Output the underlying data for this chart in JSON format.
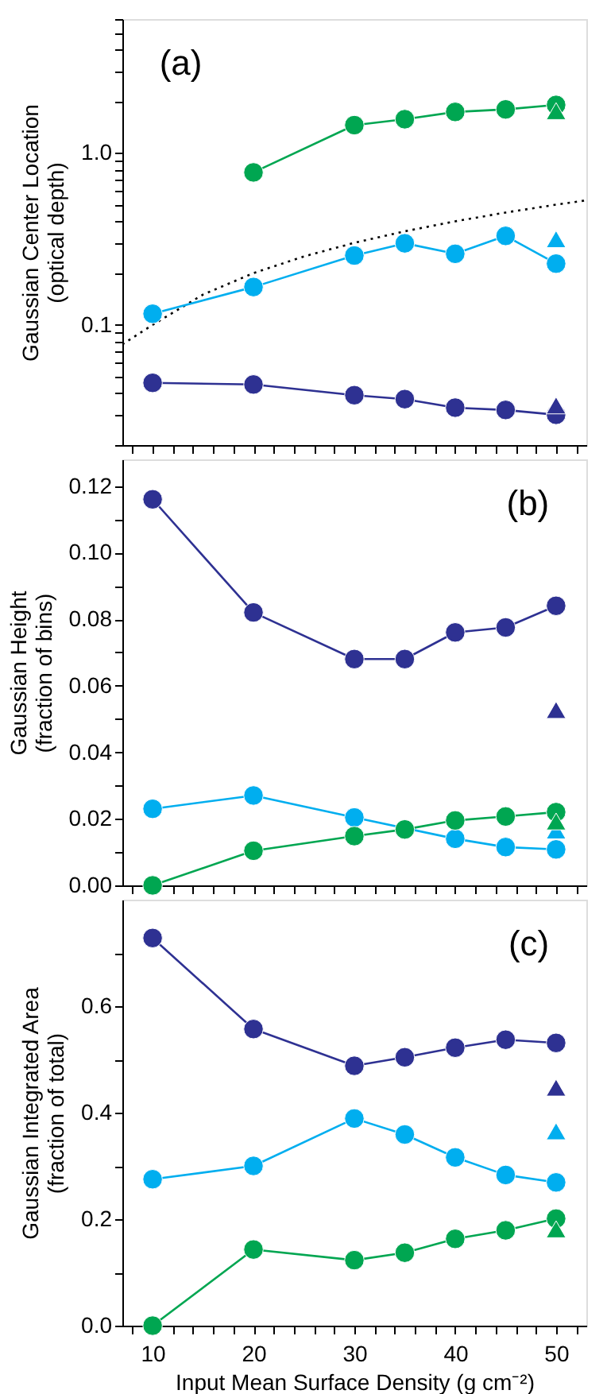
{
  "chart_data": [
    {
      "type": "line",
      "ylabel": "Gaussian Center Location\n(optical depth)",
      "annotations": [
        "(a)"
      ],
      "log": true,
      "xlim": [
        7,
        53
      ],
      "ylim": [
        0.02,
        6
      ],
      "tick_labels": "y",
      "xticks": [
        {
          "value": 8,
          "label": null
        },
        {
          "value": 10,
          "label": null
        },
        {
          "value": 12,
          "label": null
        },
        {
          "value": 14,
          "label": null
        },
        {
          "value": 16,
          "label": null
        },
        {
          "value": 18,
          "label": null
        },
        {
          "value": 20,
          "label": null
        },
        {
          "value": 22,
          "label": null
        },
        {
          "value": 24,
          "label": null
        },
        {
          "value": 26,
          "label": null
        },
        {
          "value": 28,
          "label": null
        },
        {
          "value": 30,
          "label": null
        },
        {
          "value": 32,
          "label": null
        },
        {
          "value": 34,
          "label": null
        },
        {
          "value": 36,
          "label": null
        },
        {
          "value": 38,
          "label": null
        },
        {
          "value": 40,
          "label": null
        },
        {
          "value": 42,
          "label": null
        },
        {
          "value": 44,
          "label": null
        },
        {
          "value": 46,
          "label": null
        },
        {
          "value": 48,
          "label": null
        },
        {
          "value": 50,
          "label": null
        },
        {
          "value": 52,
          "label": null
        }
      ],
      "yticks": [
        {
          "value": 0.02,
          "label": null
        },
        {
          "value": 0.03,
          "label": null
        },
        {
          "value": 0.04,
          "label": null
        },
        {
          "value": 0.05,
          "label": null
        },
        {
          "value": 0.06,
          "label": null
        },
        {
          "value": 0.07,
          "label": null
        },
        {
          "value": 0.08,
          "label": null
        },
        {
          "value": 0.09,
          "label": null
        },
        0.1,
        {
          "value": 0.2,
          "label": null
        },
        {
          "value": 0.3,
          "label": null
        },
        {
          "value": 0.4,
          "label": null
        },
        {
          "value": 0.5,
          "label": null
        },
        {
          "value": 0.6,
          "label": null
        },
        {
          "value": 0.7,
          "label": null
        },
        {
          "value": 0.8,
          "label": null
        },
        {
          "value": 0.9,
          "label": null
        },
        {
          "value": 1,
          "label": "1.0"
        },
        {
          "value": 2,
          "label": null
        },
        {
          "value": 3,
          "label": null
        },
        {
          "value": 4,
          "label": null
        },
        {
          "value": 5,
          "label": null
        },
        {
          "value": 6,
          "label": null
        }
      ],
      "series": [
        {
          "type": "line",
          "color": "#000000",
          "marker": "none",
          "line_style": "dotted",
          "x": [
            7,
            10,
            15,
            20,
            25,
            30,
            35,
            40,
            45,
            50,
            53
          ],
          "values": [
            0.077,
            0.1,
            0.15,
            0.2,
            0.25,
            0.3,
            0.35,
            0.4,
            0.45,
            0.5,
            0.53
          ]
        },
        {
          "type": "line",
          "color": "#00a651",
          "marker": "circle",
          "x": [
            20,
            30,
            35,
            40,
            45,
            50
          ],
          "values": [
            0.77,
            1.45,
            1.57,
            1.73,
            1.79,
            1.9
          ]
        },
        {
          "type": "line",
          "color": "#00aeef",
          "marker": "circle",
          "x": [
            10,
            20,
            30,
            35,
            40,
            45,
            50
          ],
          "values": [
            0.116,
            0.166,
            0.253,
            0.298,
            0.259,
            0.329,
            0.227
          ]
        },
        {
          "type": "line",
          "color": "#2e3192",
          "marker": "circle",
          "x": [
            10,
            20,
            30,
            35,
            40,
            45,
            50
          ],
          "values": [
            0.046,
            0.045,
            0.039,
            0.037,
            0.033,
            0.032,
            0.03
          ]
        },
        {
          "type": "scatter",
          "color": "#00a651",
          "marker": "triangle",
          "x": [
            50
          ],
          "values": [
            1.75
          ]
        },
        {
          "type": "scatter",
          "color": "#00aeef",
          "marker": "triangle",
          "x": [
            50
          ],
          "values": [
            0.315
          ]
        },
        {
          "type": "scatter",
          "color": "#2e3192",
          "marker": "triangle",
          "x": [
            50
          ],
          "values": [
            0.034
          ]
        }
      ]
    },
    {
      "type": "line",
      "ylabel": "Gaussian Height\n(fraction of bins)",
      "annotations": [
        "(b)"
      ],
      "xlim": [
        7,
        53
      ],
      "ylim": [
        0,
        0.128
      ],
      "tick_labels": "y",
      "xticks": [
        {
          "value": 8,
          "label": null
        },
        {
          "value": 10,
          "label": null
        },
        {
          "value": 12,
          "label": null
        },
        {
          "value": 14,
          "label": null
        },
        {
          "value": 16,
          "label": null
        },
        {
          "value": 18,
          "label": null
        },
        {
          "value": 20,
          "label": null
        },
        {
          "value": 22,
          "label": null
        },
        {
          "value": 24,
          "label": null
        },
        {
          "value": 26,
          "label": null
        },
        {
          "value": 28,
          "label": null
        },
        {
          "value": 30,
          "label": null
        },
        {
          "value": 32,
          "label": null
        },
        {
          "value": 34,
          "label": null
        },
        {
          "value": 36,
          "label": null
        },
        {
          "value": 38,
          "label": null
        },
        {
          "value": 40,
          "label": null
        },
        {
          "value": 42,
          "label": null
        },
        {
          "value": 44,
          "label": null
        },
        {
          "value": 46,
          "label": null
        },
        {
          "value": 48,
          "label": null
        },
        {
          "value": 50,
          "label": null
        },
        {
          "value": 52,
          "label": null
        }
      ],
      "yticks": [
        {
          "value": 0,
          "label": "0.00"
        },
        {
          "value": 0.01,
          "label": null
        },
        {
          "value": 0.02,
          "label": "0.02"
        },
        {
          "value": 0.03,
          "label": null
        },
        {
          "value": 0.04,
          "label": "0.04"
        },
        {
          "value": 0.05,
          "label": null
        },
        {
          "value": 0.06,
          "label": "0.06"
        },
        {
          "value": 0.07,
          "label": null
        },
        {
          "value": 0.08,
          "label": "0.08"
        },
        {
          "value": 0.09,
          "label": null
        },
        {
          "value": 0.1,
          "label": "0.10"
        },
        {
          "value": 0.11,
          "label": null
        },
        {
          "value": 0.12,
          "label": "0.12"
        }
      ],
      "series": [
        {
          "type": "line",
          "color": "#2e3192",
          "marker": "circle",
          "x": [
            10,
            20,
            30,
            35,
            40,
            45,
            50
          ],
          "values": [
            0.116,
            0.082,
            0.068,
            0.068,
            0.076,
            0.0775,
            0.084
          ]
        },
        {
          "type": "line",
          "color": "#00aeef",
          "marker": "circle",
          "x": [
            10,
            20,
            30,
            35,
            40,
            45,
            50
          ],
          "values": [
            0.023,
            0.027,
            0.0204,
            null,
            0.014,
            0.0115,
            0.0108
          ]
        },
        {
          "type": "line",
          "color": "#00a651",
          "marker": "circle",
          "x": [
            10,
            20,
            30,
            35,
            40,
            45,
            50
          ],
          "values": [
            0,
            0.0104,
            0.0148,
            0.0168,
            0.0195,
            0.0207,
            0.022
          ]
        },
        {
          "type": "scatter",
          "color": "#2e3192",
          "marker": "triangle",
          "x": [
            50
          ],
          "values": [
            0.0527
          ]
        },
        {
          "type": "scatter",
          "color": "#00aeef",
          "marker": "triangle",
          "x": [
            50
          ],
          "values": [
            0.0165
          ]
        },
        {
          "type": "scatter",
          "color": "#00a651",
          "marker": "triangle",
          "x": [
            50
          ],
          "values": [
            0.0192
          ]
        }
      ]
    },
    {
      "type": "line",
      "xlabel": "Input Mean Surface Density (g cm⁻²)",
      "ylabel": "Gaussian Integrated Area\n(fraction of total)",
      "annotations": [
        "(c)"
      ],
      "xlim": [
        7,
        53
      ],
      "ylim": [
        0,
        0.8
      ],
      "xticks": [
        {
          "value": 8,
          "label": null
        },
        10,
        {
          "value": 12,
          "label": null
        },
        {
          "value": 14,
          "label": null
        },
        {
          "value": 16,
          "label": null
        },
        {
          "value": 18,
          "label": null
        },
        20,
        {
          "value": 22,
          "label": null
        },
        {
          "value": 24,
          "label": null
        },
        {
          "value": 26,
          "label": null
        },
        {
          "value": 28,
          "label": null
        },
        30,
        {
          "value": 32,
          "label": null
        },
        {
          "value": 34,
          "label": null
        },
        {
          "value": 36,
          "label": null
        },
        {
          "value": 38,
          "label": null
        },
        40,
        {
          "value": 42,
          "label": null
        },
        {
          "value": 44,
          "label": null
        },
        {
          "value": 46,
          "label": null
        },
        {
          "value": 48,
          "label": null
        },
        50,
        {
          "value": 52,
          "label": null
        }
      ],
      "yticks": [
        {
          "value": 0,
          "label": "0.0"
        },
        {
          "value": 0.1,
          "label": null
        },
        {
          "value": 0.2,
          "label": "0.2"
        },
        {
          "value": 0.3,
          "label": null
        },
        {
          "value": 0.4,
          "label": "0.4"
        },
        {
          "value": 0.5,
          "label": null
        },
        {
          "value": 0.6,
          "label": "0.6"
        },
        {
          "value": 0.7,
          "label": null
        }
      ],
      "series": [
        {
          "type": "line",
          "color": "#2e3192",
          "marker": "circle",
          "x": [
            10,
            20,
            30,
            35,
            40,
            45,
            50
          ],
          "values": [
            0.728,
            0.557,
            0.488,
            0.504,
            0.522,
            0.537,
            0.531
          ]
        },
        {
          "type": "line",
          "color": "#00aeef",
          "marker": "circle",
          "x": [
            10,
            20,
            30,
            35,
            40,
            45,
            50
          ],
          "values": [
            0.275,
            0.3,
            0.389,
            0.359,
            0.316,
            0.283,
            0.269
          ]
        },
        {
          "type": "line",
          "color": "#00a651",
          "marker": "circle",
          "x": [
            10,
            20,
            30,
            35,
            40,
            45,
            50
          ],
          "values": [
            0,
            0.143,
            0.123,
            0.137,
            0.163,
            0.179,
            0.201
          ]
        },
        {
          "type": "scatter",
          "color": "#2e3192",
          "marker": "triangle",
          "x": [
            50
          ],
          "values": [
            0.447
          ]
        },
        {
          "type": "scatter",
          "color": "#00aeef",
          "marker": "triangle",
          "x": [
            50
          ],
          "values": [
            0.365
          ]
        },
        {
          "type": "scatter",
          "color": "#00a651",
          "marker": "triangle",
          "x": [
            50
          ],
          "values": [
            0.181
          ]
        }
      ]
    }
  ]
}
